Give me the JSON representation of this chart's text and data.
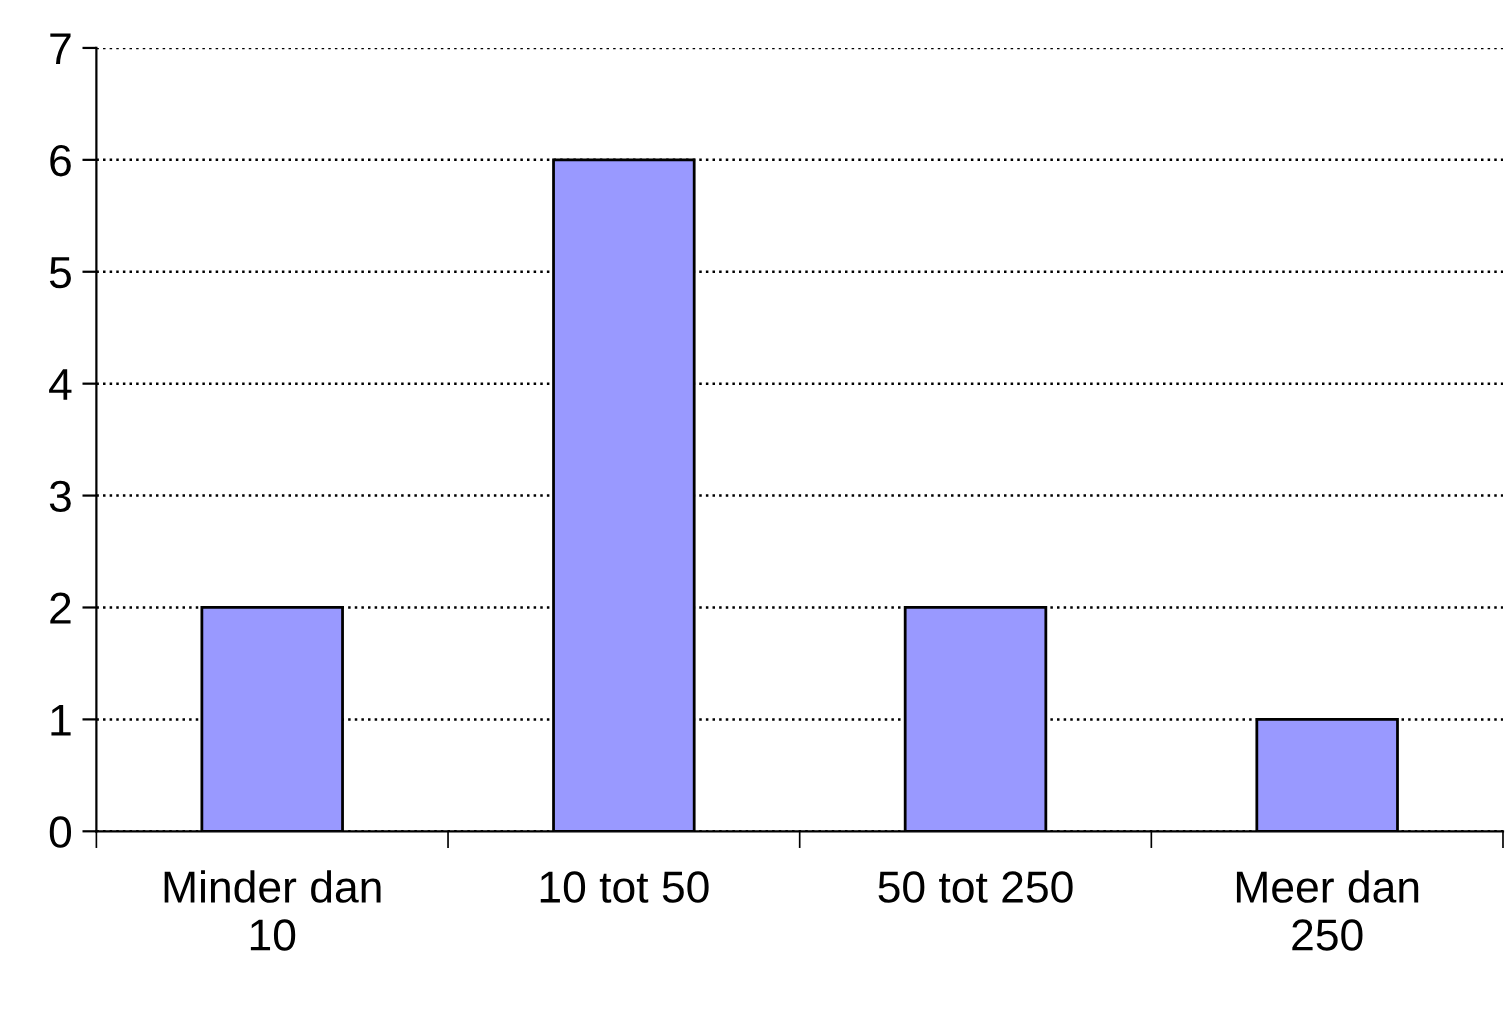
{
  "chart_data": {
    "type": "bar",
    "categories": [
      "Minder dan\n10",
      "10 tot 50",
      "50 tot 250",
      "Meer dan\n250"
    ],
    "values": [
      2,
      6,
      2,
      1
    ],
    "color": "#9999ff",
    "ylim": [
      0,
      7
    ],
    "yticks": [
      0,
      1,
      2,
      3,
      4,
      5,
      6,
      7
    ],
    "grid": "y"
  }
}
